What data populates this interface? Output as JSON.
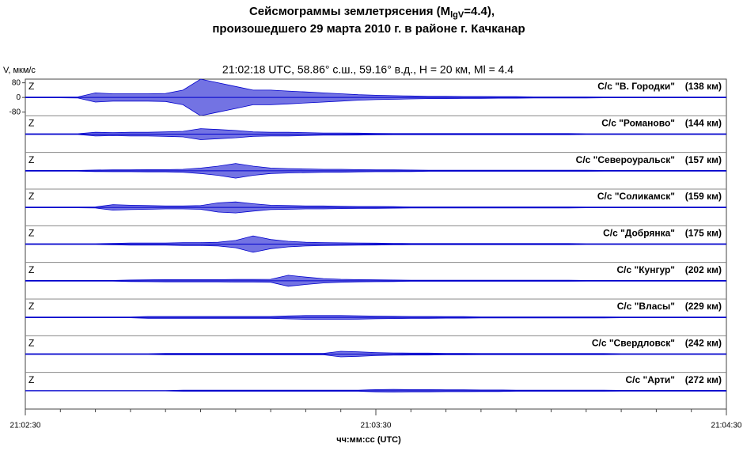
{
  "chart_data": {
    "type": "seismogram",
    "title": {
      "prefix": "Сейсмограммы землетрясения (M",
      "subscript": "lgV",
      "suffix": "=4.4),"
    },
    "subtitle": "произошедшего 29 марта 2010 г. в районе г. Качканар",
    "header": "21:02:18 UTC, 58.86° с.ш., 59.16° в.д., H = 20 км, Ml = 4.4",
    "y_label": "V, мкм/с",
    "x_label": "чч:мм:сс  (UTC)",
    "color": "#0000cc",
    "xlim": [
      0,
      120
    ],
    "xticks": [
      {
        "value": 0,
        "label": "21:02:30"
      },
      {
        "value": 60,
        "label": "21:03:30"
      },
      {
        "value": 120,
        "label": "21:04:30"
      }
    ],
    "xminorticks": [
      6,
      12,
      18,
      24,
      30,
      36,
      42,
      48,
      54,
      66,
      72,
      78,
      84,
      90,
      96,
      102,
      108,
      114
    ],
    "ylim": [
      -100,
      100
    ],
    "yticks": [
      80,
      0,
      -80
    ],
    "x": [
      0,
      3,
      6,
      9,
      12,
      15,
      18,
      21,
      24,
      27,
      30,
      33,
      36,
      39,
      42,
      45,
      48,
      51,
      54,
      57,
      60,
      63,
      66,
      69,
      72,
      75,
      78,
      81,
      84,
      87,
      90,
      93,
      96,
      99,
      102,
      105,
      108,
      111,
      114,
      117,
      120
    ],
    "series": [
      {
        "name": "С/с \"В. Городки\"",
        "distance": "(138 км)",
        "component": "Z",
        "values": [
          2,
          2,
          2,
          3,
          25,
          20,
          20,
          20,
          22,
          40,
          100,
          80,
          60,
          40,
          40,
          35,
          30,
          25,
          20,
          15,
          12,
          10,
          8,
          6,
          6,
          5,
          5,
          4,
          4,
          3,
          3,
          3,
          3,
          2,
          2,
          2,
          2,
          2,
          2,
          2,
          2
        ]
      },
      {
        "name": "С/с \"Романово\"",
        "distance": "(144 км)",
        "component": "Z",
        "values": [
          2,
          2,
          2,
          2,
          10,
          8,
          10,
          10,
          12,
          15,
          30,
          25,
          20,
          12,
          10,
          10,
          8,
          6,
          6,
          5,
          4,
          3,
          3,
          3,
          3,
          3,
          3,
          3,
          3,
          3,
          3,
          3,
          2,
          2,
          2,
          2,
          2,
          2,
          2,
          2,
          2
        ]
      },
      {
        "name": "С/с \"Североуральск\"",
        "distance": "(157 км)",
        "component": "Z",
        "values": [
          2,
          2,
          2,
          2,
          4,
          5,
          5,
          6,
          6,
          8,
          15,
          25,
          40,
          25,
          15,
          12,
          10,
          8,
          8,
          6,
          5,
          5,
          4,
          3,
          3,
          3,
          3,
          3,
          3,
          3,
          3,
          3,
          3,
          2,
          2,
          2,
          2,
          2,
          2,
          2,
          2
        ]
      },
      {
        "name": "С/с \"Соликамск\"",
        "distance": "(159 км)",
        "component": "Z",
        "values": [
          2,
          2,
          2,
          2,
          3,
          15,
          12,
          10,
          8,
          8,
          10,
          25,
          30,
          20,
          12,
          10,
          8,
          8,
          6,
          5,
          5,
          4,
          3,
          3,
          3,
          3,
          3,
          3,
          3,
          3,
          3,
          3,
          2,
          2,
          2,
          2,
          2,
          2,
          2,
          2,
          2
        ]
      },
      {
        "name": "С/с \"Добрянка\"",
        "distance": "(175 км)",
        "component": "Z",
        "values": [
          2,
          2,
          2,
          2,
          2,
          4,
          6,
          6,
          6,
          8,
          8,
          10,
          20,
          45,
          25,
          15,
          10,
          8,
          7,
          6,
          5,
          4,
          3,
          3,
          3,
          3,
          3,
          3,
          3,
          3,
          3,
          3,
          2,
          2,
          2,
          2,
          2,
          2,
          2,
          2,
          2
        ]
      },
      {
        "name": "С/с \"Кунгур\"",
        "distance": "(202 км)",
        "component": "Z",
        "values": [
          2,
          2,
          2,
          2,
          2,
          2,
          4,
          5,
          6,
          6,
          6,
          6,
          7,
          7,
          8,
          30,
          20,
          12,
          8,
          6,
          5,
          4,
          3,
          3,
          3,
          3,
          3,
          3,
          3,
          3,
          3,
          3,
          2,
          2,
          2,
          2,
          2,
          2,
          2,
          2,
          2
        ]
      },
      {
        "name": "С/с \"Власы\"",
        "distance": "(229 км)",
        "component": "Z",
        "values": [
          2,
          2,
          2,
          2,
          2,
          2,
          2,
          5,
          5,
          5,
          5,
          5,
          5,
          5,
          5,
          8,
          10,
          10,
          10,
          9,
          7,
          6,
          5,
          5,
          4,
          4,
          3,
          3,
          3,
          3,
          3,
          3,
          3,
          3,
          2,
          2,
          2,
          2,
          2,
          2,
          2
        ]
      },
      {
        "name": "С/с \"Свердловск\"",
        "distance": "(242 км)",
        "component": "Z",
        "values": [
          2,
          2,
          2,
          2,
          2,
          2,
          2,
          2,
          4,
          4,
          4,
          4,
          4,
          4,
          4,
          4,
          4,
          4,
          15,
          12,
          8,
          6,
          5,
          5,
          4,
          4,
          3,
          3,
          3,
          3,
          3,
          3,
          3,
          3,
          2,
          2,
          2,
          2,
          2,
          2,
          2
        ]
      },
      {
        "name": "С/с \"Арти\"",
        "distance": "(272 км)",
        "component": "Z",
        "values": [
          1,
          1,
          1,
          1,
          1,
          1,
          1,
          1,
          1,
          3,
          3,
          3,
          3,
          3,
          3,
          3,
          3,
          3,
          3,
          3,
          6,
          7,
          6,
          6,
          5,
          5,
          4,
          4,
          3,
          3,
          3,
          3,
          3,
          3,
          2,
          2,
          2,
          2,
          2,
          2,
          2
        ]
      }
    ]
  }
}
